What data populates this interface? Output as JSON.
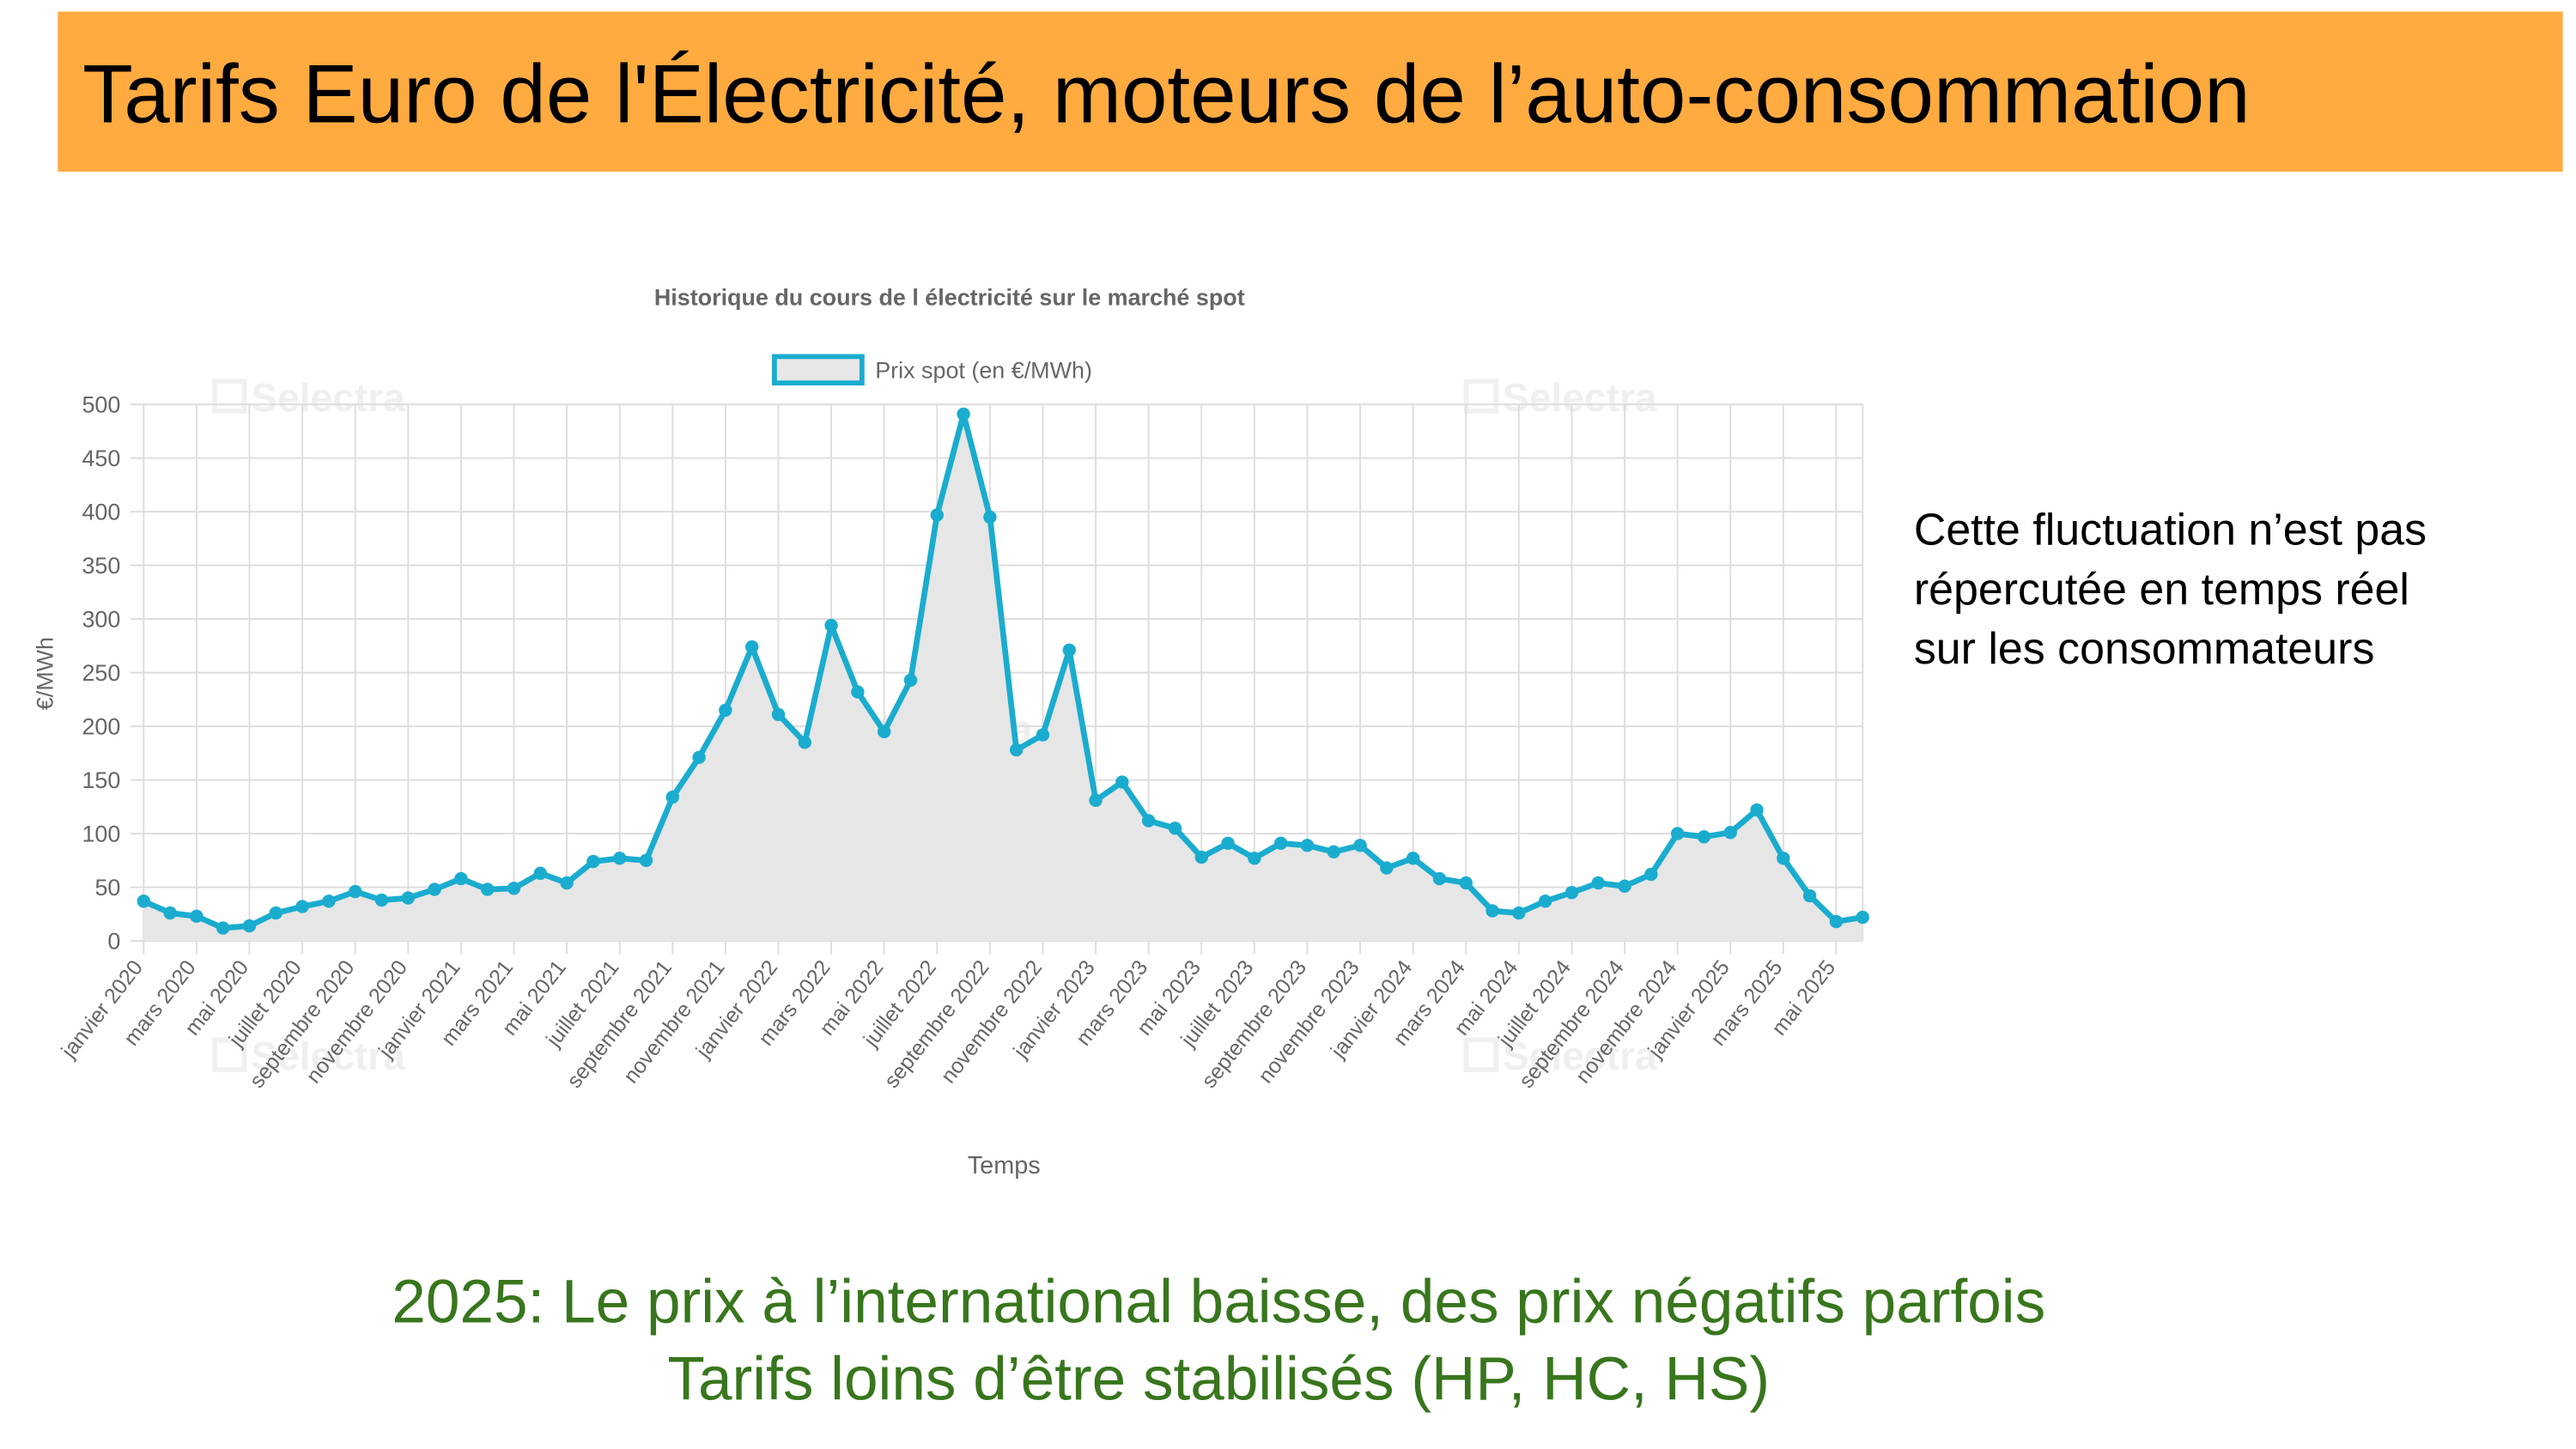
{
  "title": "Tarifs Euro de l'Électricité, moteurs de l’auto-consommation",
  "side_note": [
    "Cette fluctuation n’est pas",
    "répercutée en temps réel",
    "sur les consommateurs"
  ],
  "footer": [
    "2025: Le prix à l’international baisse, des prix négatifs parfois",
    "Tarifs loins d’être stabilisés (HP, HC, HS)"
  ],
  "chart_data": {
    "type": "line",
    "title": "Historique du cours de l électricité sur le marché spot",
    "watermark": "Selectra",
    "xlabel": "Temps",
    "ylabel": "€/MWh",
    "categories": [
      "janvier 2020",
      null,
      "mars 2020",
      null,
      "mai 2020",
      null,
      "juillet 2020",
      null,
      "septembre 2020",
      null,
      "novembre 2020",
      null,
      "janvier 2021",
      null,
      "mars 2021",
      null,
      "mai 2021",
      null,
      "juillet 2021",
      null,
      "septembre 2021",
      null,
      "novembre 2021",
      null,
      "janvier 2022",
      null,
      "mars 2022",
      null,
      "mai 2022",
      null,
      "juillet 2022",
      null,
      "septembre 2022",
      null,
      "novembre 2022",
      null,
      "janvier 2023",
      null,
      "mars 2023",
      null,
      "mai 2023",
      null,
      "juillet 2023",
      null,
      "septembre 2023",
      null,
      "novembre 2023",
      null,
      "janvier 2024",
      null,
      "mars 2024",
      null,
      "mai 2024",
      null,
      "juillet 2024",
      null,
      "septembre 2024",
      null,
      "novembre 2024",
      null,
      "janvier 2025",
      null,
      "mars 2025",
      null,
      "mai 2025",
      null
    ],
    "series": [
      {
        "name": "Prix spot (en €/MWh)",
        "color": "#1aaccf",
        "fill": "#e6e6e6",
        "values": [
          37,
          26,
          23,
          12,
          14,
          26,
          32,
          37,
          46,
          38,
          40,
          48,
          58,
          48,
          49,
          63,
          54,
          74,
          77,
          75,
          134,
          171,
          215,
          274,
          211,
          185,
          294,
          232,
          195,
          243,
          397,
          491,
          395,
          178,
          192,
          271,
          131,
          148,
          112,
          105,
          78,
          91,
          77,
          91,
          89,
          83,
          89,
          68,
          77,
          58,
          54,
          28,
          26,
          37,
          45,
          54,
          51,
          62,
          100,
          97,
          101,
          122,
          77,
          42,
          18,
          22
        ]
      }
    ],
    "ylim": [
      0,
      500
    ],
    "yticks": [
      0,
      50,
      100,
      150,
      200,
      250,
      300,
      350,
      400,
      450,
      500
    ],
    "grid": true
  }
}
